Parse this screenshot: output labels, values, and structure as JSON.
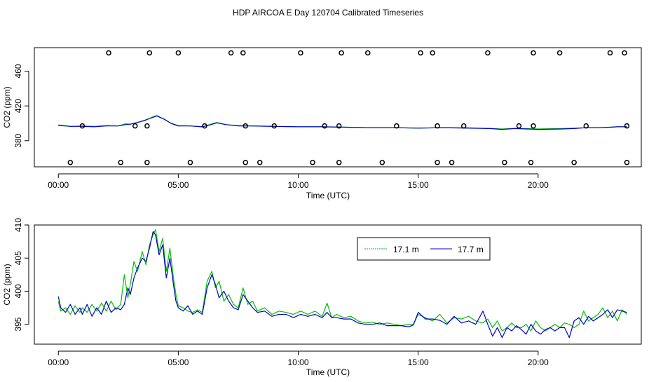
{
  "title": "HDP AIRCOA E  Day 120704  Calibrated Timeseries",
  "colors": {
    "series_green": "#00c000",
    "series_blue": "#0000cc",
    "axis": "#000000",
    "flag_marker": "#000000"
  },
  "chart_data": [
    {
      "type": "line",
      "name": "top_panel",
      "xlabel": "Time (UTC)",
      "ylabel": "CO2 (ppm)",
      "xlim": [
        -1,
        24.3
      ],
      "ylim": [
        350,
        487
      ],
      "xticks": [
        0,
        5,
        10,
        15,
        20
      ],
      "xtick_labels": [
        "00:00",
        "05:00",
        "10:00",
        "15:00",
        "20:00"
      ],
      "yticks": [
        380,
        420,
        460
      ],
      "ytick_labels": [
        "380",
        "420",
        "460"
      ],
      "markers": {
        "type": "open-circle",
        "high_row": {
          "y": 481,
          "x": [
            2.1,
            3.8,
            5.0,
            7.2,
            7.7,
            10.1,
            11.8,
            12.9,
            15.1,
            15.6,
            17.9,
            19.8,
            20.9,
            23.0,
            23.6
          ]
        },
        "low_row": {
          "y": 355,
          "x": [
            0.5,
            2.6,
            3.7,
            5.5,
            7.8,
            8.4,
            10.6,
            11.7,
            13.5,
            15.8,
            16.4,
            18.6,
            19.7,
            21.5,
            23.7
          ]
        },
        "mid_row": {
          "y": 397,
          "x": [
            1.0,
            3.2,
            3.7,
            6.1,
            7.8,
            9.0,
            11.1,
            11.7,
            14.1,
            15.8,
            16.9,
            19.2,
            19.8,
            22.0,
            23.7
          ]
        }
      },
      "series": [
        {
          "name": "17.1 m",
          "color": "#00c000",
          "x": [
            0,
            0.5,
            1,
            1.5,
            2,
            2.5,
            2.8,
            3,
            3.3,
            3.6,
            3.9,
            4.1,
            4.4,
            4.7,
            5.0,
            5.5,
            6.0,
            6.3,
            6.6,
            7.0,
            7.5,
            8,
            9,
            10,
            11,
            12,
            13,
            14,
            15,
            16,
            17,
            18,
            18.5,
            19,
            19.5,
            20,
            21,
            21.5,
            22,
            22.5,
            23,
            23.3,
            23.7
          ],
          "values": [
            397.5,
            396.5,
            397,
            396.5,
            397.5,
            397,
            399.5,
            399,
            401,
            403,
            407,
            409,
            405,
            400,
            397.5,
            397,
            396,
            398.5,
            401,
            398.5,
            397.5,
            397,
            396.5,
            396,
            396,
            395.5,
            395,
            395,
            394.5,
            395,
            395,
            394,
            393.5,
            394,
            394,
            393.5,
            394,
            394.5,
            395,
            395,
            395.5,
            396,
            396
          ]
        },
        {
          "name": "17.7 m",
          "color": "#0000cc",
          "x": [
            0,
            0.5,
            1,
            1.5,
            2,
            2.5,
            2.8,
            3,
            3.3,
            3.6,
            3.9,
            4.1,
            4.4,
            4.7,
            5.0,
            5.5,
            6.0,
            6.3,
            6.6,
            7.0,
            7.5,
            8,
            9,
            10,
            11,
            12,
            13,
            14,
            15,
            16,
            17,
            18,
            18.5,
            19,
            19.5,
            20,
            21,
            21.5,
            22,
            22.5,
            23,
            23.3,
            23.7
          ],
          "values": [
            398,
            396.5,
            396.5,
            396,
            397,
            397,
            398.5,
            399,
            401,
            403.5,
            406.5,
            408.5,
            405,
            400,
            397,
            397,
            396,
            398,
            400.5,
            398.5,
            397,
            397,
            396.5,
            396,
            396,
            395.5,
            395,
            395,
            394.5,
            395,
            394.5,
            394,
            393,
            394,
            393.5,
            393,
            393.5,
            394,
            395,
            395,
            395.5,
            396,
            396
          ]
        }
      ]
    },
    {
      "type": "line",
      "name": "bottom_panel",
      "xlabel": "Time (UTC)",
      "ylabel": "CO2 (ppm)",
      "xlim": [
        -1,
        24.3
      ],
      "ylim": [
        392,
        410
      ],
      "xticks": [
        0,
        5,
        10,
        15,
        20
      ],
      "xtick_labels": [
        "00:00",
        "05:00",
        "10:00",
        "15:00",
        "20:00"
      ],
      "yticks": [
        395,
        400,
        405,
        410
      ],
      "ytick_labels": [
        "395",
        "400",
        "405",
        "410"
      ],
      "legend": {
        "position": "top-right",
        "entries": [
          "17.1 m",
          "17.7 m"
        ]
      },
      "series": [
        {
          "name": "17.1 m",
          "color": "#00c000",
          "x": [
            0,
            0.1,
            0.3,
            0.5,
            0.7,
            0.9,
            1.0,
            1.2,
            1.4,
            1.6,
            1.8,
            2.0,
            2.2,
            2.4,
            2.6,
            2.75,
            2.9,
            3.0,
            3.15,
            3.3,
            3.5,
            3.65,
            3.8,
            3.95,
            4.05,
            4.2,
            4.35,
            4.5,
            4.65,
            4.8,
            4.9,
            5.0,
            5.2,
            5.4,
            5.6,
            5.8,
            6.0,
            6.2,
            6.4,
            6.55,
            6.7,
            6.9,
            7.1,
            7.3,
            7.5,
            7.7,
            7.9,
            8.1,
            8.3,
            8.6,
            8.9,
            9.2,
            9.5,
            9.8,
            10.1,
            10.4,
            10.7,
            11.0,
            11.2,
            11.4,
            11.6,
            11.9,
            12.2,
            12.5,
            12.8,
            13.1,
            13.4,
            13.7,
            14.0,
            14.3,
            14.6,
            14.8,
            15.0,
            15.3,
            15.6,
            15.9,
            16.2,
            16.5,
            16.8,
            17.1,
            17.4,
            17.7,
            17.9,
            18.1,
            18.3,
            18.5,
            18.7,
            18.9,
            19.1,
            19.3,
            19.5,
            19.7,
            19.9,
            20.1,
            20.3,
            20.5,
            20.7,
            20.9,
            21.1,
            21.3,
            21.5,
            21.7,
            21.9,
            22.1,
            22.3,
            22.5,
            22.7,
            22.9,
            23.1,
            23.3,
            23.5,
            23.7
          ],
          "values": [
            398.5,
            397.0,
            397.5,
            396.5,
            397.8,
            396.8,
            397.5,
            396.8,
            398.0,
            397.0,
            398.2,
            397.0,
            398.5,
            397.2,
            398.0,
            402.5,
            399.0,
            401.0,
            404.5,
            403.0,
            406.0,
            404.0,
            407.0,
            408.5,
            409.3,
            406.0,
            408.0,
            403.0,
            406.5,
            402.0,
            399.5,
            397.8,
            397.5,
            397.0,
            396.8,
            397.2,
            396.8,
            401.5,
            403.0,
            400.5,
            401.5,
            398.5,
            399.5,
            398.0,
            397.5,
            400.5,
            398.0,
            398.5,
            397.0,
            397.5,
            396.5,
            397.0,
            396.8,
            396.5,
            397.0,
            396.5,
            397.0,
            396.2,
            398.2,
            396.0,
            396.5,
            396.0,
            396.2,
            395.5,
            395.2,
            395.3,
            395.0,
            395.2,
            395.0,
            394.8,
            395.0,
            395.0,
            396.5,
            396.0,
            395.5,
            396.5,
            395.2,
            396.0,
            395.8,
            396.2,
            395.5,
            395.2,
            395.8,
            394.5,
            395.5,
            394.0,
            394.5,
            395.2,
            394.5,
            394.5,
            395.0,
            394.0,
            395.5,
            394.5,
            394.0,
            394.5,
            395.0,
            394.5,
            395.2,
            395.0,
            394.5,
            395.0,
            397.0,
            395.5,
            396.0,
            396.5,
            397.5,
            396.0,
            397.0,
            395.5,
            397.2,
            396.5
          ]
        },
        {
          "name": "17.7 m",
          "color": "#0000cc",
          "x": [
            0,
            0.1,
            0.3,
            0.5,
            0.7,
            0.9,
            1.0,
            1.2,
            1.4,
            1.6,
            1.8,
            2.0,
            2.2,
            2.4,
            2.6,
            2.75,
            2.9,
            3.0,
            3.15,
            3.3,
            3.5,
            3.65,
            3.8,
            3.95,
            4.05,
            4.2,
            4.35,
            4.5,
            4.65,
            4.8,
            4.9,
            5.0,
            5.2,
            5.4,
            5.6,
            5.8,
            6.0,
            6.2,
            6.4,
            6.55,
            6.7,
            6.9,
            7.1,
            7.3,
            7.5,
            7.7,
            7.9,
            8.1,
            8.3,
            8.6,
            8.9,
            9.2,
            9.5,
            9.8,
            10.1,
            10.4,
            10.7,
            11.0,
            11.2,
            11.4,
            11.6,
            11.9,
            12.2,
            12.5,
            12.8,
            13.1,
            13.4,
            13.7,
            14.0,
            14.3,
            14.6,
            14.8,
            15.0,
            15.3,
            15.6,
            15.9,
            16.2,
            16.5,
            16.8,
            17.1,
            17.4,
            17.7,
            17.9,
            18.1,
            18.3,
            18.5,
            18.7,
            18.9,
            19.1,
            19.3,
            19.5,
            19.7,
            19.9,
            20.1,
            20.3,
            20.5,
            20.7,
            20.9,
            21.1,
            21.3,
            21.5,
            21.7,
            21.9,
            22.1,
            22.3,
            22.5,
            22.7,
            22.9,
            23.1,
            23.3,
            23.5,
            23.7
          ],
          "values": [
            399.2,
            397.5,
            396.8,
            398.0,
            396.5,
            397.5,
            396.5,
            398.0,
            396.2,
            397.5,
            396.5,
            398.5,
            396.8,
            397.5,
            397.2,
            398.0,
            400.5,
            399.5,
            402.0,
            403.5,
            405.0,
            404.5,
            406.5,
            409.0,
            408.5,
            405.5,
            407.0,
            402.0,
            405.0,
            401.0,
            398.5,
            397.5,
            397.0,
            397.8,
            396.5,
            397.0,
            396.5,
            400.5,
            402.5,
            401.0,
            399.0,
            400.0,
            398.5,
            397.5,
            397.2,
            399.5,
            398.5,
            397.5,
            396.8,
            397.0,
            396.2,
            396.5,
            396.5,
            396.0,
            396.5,
            396.2,
            396.5,
            396.0,
            396.8,
            396.0,
            396.0,
            395.8,
            395.8,
            395.2,
            395.0,
            395.0,
            395.2,
            394.8,
            394.8,
            394.8,
            394.6,
            394.9,
            396.8,
            395.8,
            395.8,
            395.6,
            395.0,
            396.2,
            395.2,
            395.5,
            395.0,
            397.0,
            395.0,
            393.2,
            394.5,
            393.0,
            394.5,
            394.0,
            394.8,
            394.2,
            393.5,
            395.0,
            394.0,
            393.5,
            394.2,
            394.5,
            394.0,
            394.5,
            394.5,
            393.0,
            395.5,
            396.0,
            395.0,
            396.2,
            395.5,
            396.0,
            396.5,
            397.2,
            396.0,
            397.2,
            397.0,
            396.8
          ]
        }
      ]
    }
  ]
}
